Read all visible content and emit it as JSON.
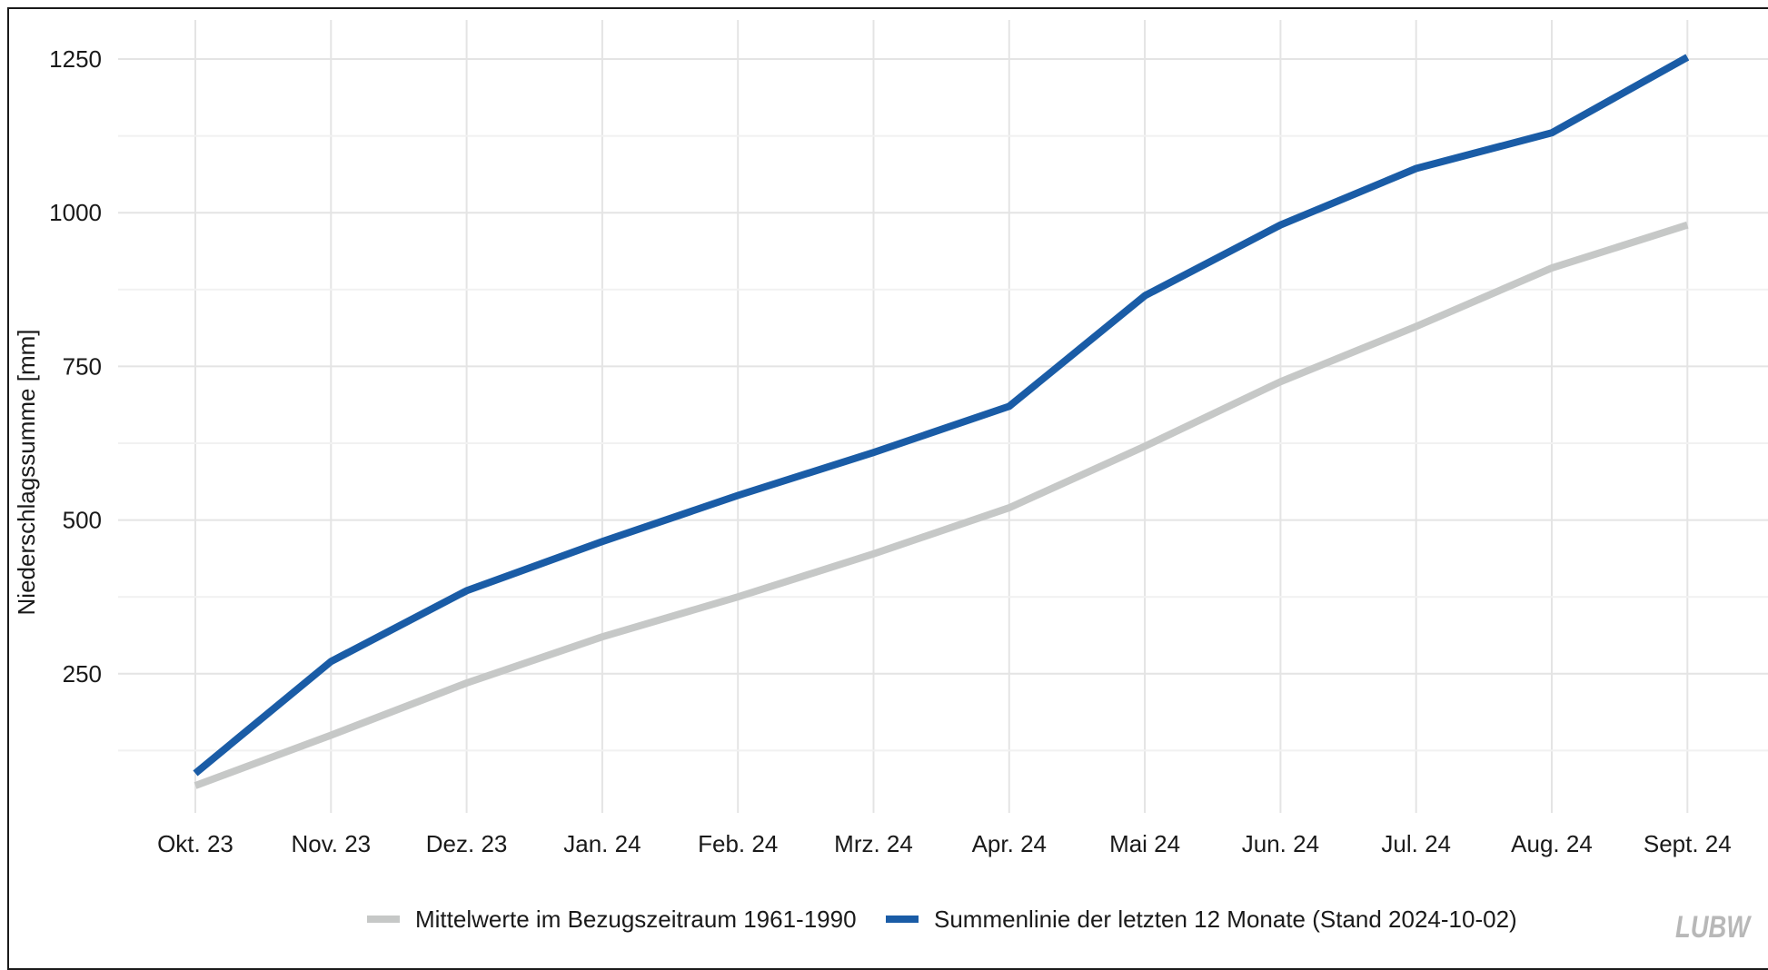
{
  "chart_data": {
    "type": "line",
    "title": "",
    "xlabel": "",
    "ylabel": "Niederschlagssumme [mm]",
    "categories": [
      "Okt. 23",
      "Nov. 23",
      "Dez. 23",
      "Jan. 24",
      "Feb. 24",
      "Mrz. 24",
      "Apr. 24",
      "Mai 24",
      "Jun. 24",
      "Jul. 24",
      "Aug. 24",
      "Sept. 24"
    ],
    "yticks": [
      250,
      500,
      750,
      1000,
      1250
    ],
    "ylim": [
      0,
      1290
    ],
    "grid": true,
    "legend_position": "bottom",
    "series": [
      {
        "name": "Mittelwerte im Bezugszeitraum 1961-1990",
        "color": "#c6c8c7",
        "values": [
          68,
          150,
          235,
          310,
          375,
          445,
          520,
          620,
          725,
          815,
          910,
          980
        ]
      },
      {
        "name": "Summenlinie der letzten 12 Monate (Stand 2024-10-02)",
        "color": "#1a5ca6",
        "values": [
          88,
          270,
          385,
          465,
          540,
          610,
          685,
          865,
          980,
          1072,
          1130,
          1253
        ]
      }
    ]
  },
  "logo": {
    "text": "LUBW",
    "icon": "lubw-logo"
  }
}
